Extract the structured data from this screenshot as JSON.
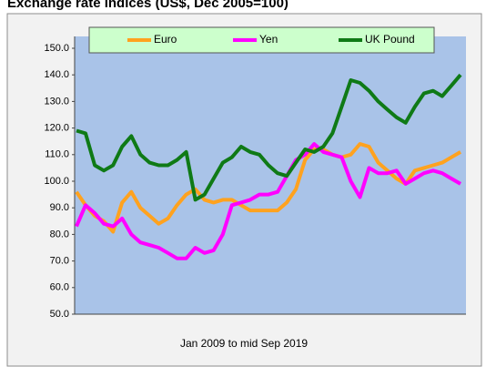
{
  "chart_data": {
    "type": "line",
    "title": "Exchange rate indices (US$, Dec 2005=100)",
    "x_label": "Jan 2009  to mid Sep 2019",
    "ylim": [
      50,
      150
    ],
    "yticks": [
      {
        "value": 50,
        "label": "50.0"
      },
      {
        "value": 60,
        "label": "60.0"
      },
      {
        "value": 70,
        "label": "70.0"
      },
      {
        "value": 80,
        "label": "80.0"
      },
      {
        "value": 90,
        "label": "90.0"
      },
      {
        "value": 100,
        "label": "100.0"
      },
      {
        "value": 110,
        "label": "110.0"
      },
      {
        "value": 120,
        "label": "120.0"
      },
      {
        "value": 130,
        "label": "130.0"
      },
      {
        "value": 140,
        "label": "140.0"
      },
      {
        "value": 150,
        "label": "150.0"
      }
    ],
    "legend": "top",
    "series": [
      {
        "name": "Euro",
        "color": "#ffa21f",
        "values": [
          96,
          91,
          87,
          85,
          81,
          92,
          96,
          90,
          87,
          84,
          86,
          91,
          95,
          97,
          93,
          92,
          93,
          93,
          91,
          89,
          89,
          89,
          89,
          92,
          97,
          108,
          112,
          112,
          110,
          109,
          110,
          114,
          113,
          107,
          104,
          101,
          99,
          104,
          105,
          106,
          107,
          109,
          111
        ]
      },
      {
        "name": "Yen",
        "color": "#ff00ff",
        "values": [
          83,
          91,
          88,
          84,
          83,
          86,
          80,
          77,
          76,
          75,
          73,
          71,
          71,
          75,
          73,
          74,
          80,
          91,
          92,
          93,
          95,
          95,
          96,
          102,
          108,
          110,
          114,
          111,
          110,
          109,
          100,
          94,
          105,
          103,
          103,
          104,
          99,
          101,
          103,
          104,
          103,
          101,
          99
        ]
      },
      {
        "name": "UK Pound",
        "color": "#0f7a16",
        "values": [
          119,
          118,
          106,
          104,
          106,
          113,
          117,
          110,
          107,
          106,
          106,
          108,
          111,
          93,
          95,
          101,
          107,
          109,
          113,
          111,
          110,
          106,
          103,
          102,
          107,
          112,
          111,
          113,
          118,
          128,
          138,
          137,
          134,
          130,
          127,
          124,
          122,
          128,
          133,
          134,
          132,
          136,
          140
        ]
      }
    ]
  }
}
